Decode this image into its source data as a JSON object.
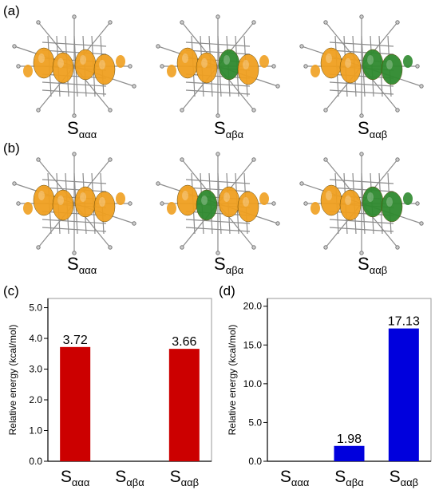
{
  "panels": {
    "a": "(a)",
    "b": "(b)",
    "c": "(c)",
    "d": "(d)"
  },
  "state_labels": [
    {
      "main": "S",
      "sub": "ααα"
    },
    {
      "main": "S",
      "sub": "αβα"
    },
    {
      "main": "S",
      "sub": "ααβ"
    }
  ],
  "colors": {
    "orbital_orange": "#f0a020",
    "orbital_green": "#2f8a2f",
    "bar_c": "#cc0000",
    "bar_d": "#0000dd",
    "frame_gray": "#9a9a9a"
  },
  "chart_data": [
    {
      "type": "bar",
      "panel": "c",
      "categories": [
        "Sααα",
        "Sαβα",
        "Sααβ"
      ],
      "values": [
        3.72,
        0,
        3.66
      ],
      "data_labels": [
        "3.72",
        "",
        "3.66"
      ],
      "ylabel": "Relative energy (kcal/mol)",
      "ylim": [
        0,
        5.3
      ],
      "yticks": [
        0.0,
        1.0,
        2.0,
        3.0,
        4.0,
        5.0
      ],
      "ytick_labels": [
        "0.0",
        "1.0",
        "2.0",
        "3.0",
        "4.0",
        "5.0"
      ],
      "color": "#cc0000"
    },
    {
      "type": "bar",
      "panel": "d",
      "categories": [
        "Sααα",
        "Sαβα",
        "Sααβ"
      ],
      "values": [
        0,
        1.98,
        17.13
      ],
      "data_labels": [
        "",
        "1.98",
        "17.13"
      ],
      "ylabel": "Relative energy (kcal/mol)",
      "ylim": [
        0,
        21
      ],
      "yticks": [
        0.0,
        5.0,
        10.0,
        15.0,
        20.0
      ],
      "ytick_labels": [
        "0.0",
        "5.0",
        "10.0",
        "15.0",
        "20.0"
      ],
      "color": "#0000dd"
    }
  ]
}
